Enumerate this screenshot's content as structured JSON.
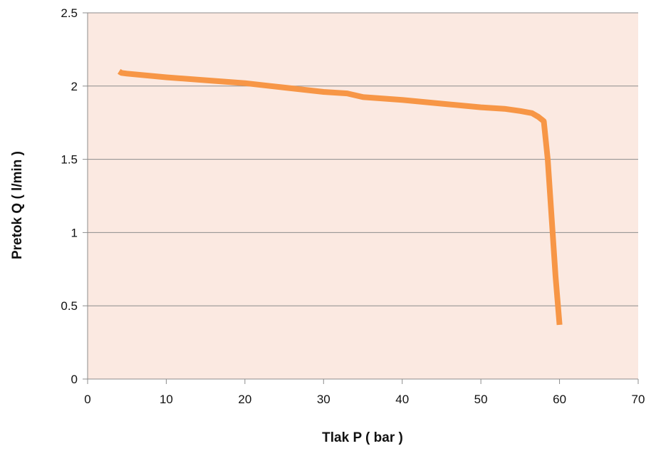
{
  "chart_data": {
    "type": "line",
    "xlabel": "Tlak P ( bar )",
    "ylabel": "Pretok Q ( l/min )",
    "xlim": [
      0,
      70
    ],
    "ylim": [
      0,
      2.5
    ],
    "x_ticks": [
      "0",
      "10",
      "20",
      "30",
      "40",
      "50",
      "60",
      "70"
    ],
    "y_ticks": [
      "0",
      "0.5",
      "1",
      "1.5",
      "2",
      "2.5"
    ],
    "grid": "horizontal",
    "plot_background": "#fbe9e1",
    "series": [
      {
        "color": "#f79646",
        "points": [
          [
            4.0,
            2.1
          ],
          [
            4.3,
            2.09
          ],
          [
            5,
            2.085
          ],
          [
            10,
            2.06
          ],
          [
            15,
            2.04
          ],
          [
            20,
            2.02
          ],
          [
            25,
            1.99
          ],
          [
            30,
            1.96
          ],
          [
            33,
            1.95
          ],
          [
            35,
            1.925
          ],
          [
            40,
            1.905
          ],
          [
            45,
            1.88
          ],
          [
            50,
            1.855
          ],
          [
            53,
            1.845
          ],
          [
            55,
            1.83
          ],
          [
            56.5,
            1.815
          ],
          [
            57.3,
            1.79
          ],
          [
            58.0,
            1.76
          ],
          [
            58.5,
            1.5
          ],
          [
            59.0,
            1.1
          ],
          [
            59.5,
            0.7
          ],
          [
            60.0,
            0.37
          ]
        ]
      }
    ]
  }
}
